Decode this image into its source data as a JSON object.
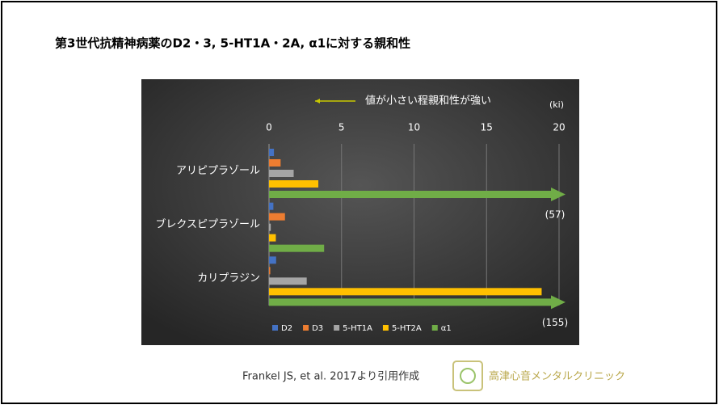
{
  "title": "第3世代抗精神病薬のD2・3, 5-HT1A・2A, α1に対する親和性",
  "chart_data": {
    "type": "hbar",
    "annotation": "値が小さい程親和性が強い",
    "unit_label": "(ki)",
    "categories": [
      "アリピプラゾール",
      "ブレクスピプラゾール",
      "カリプラジン"
    ],
    "series": [
      {
        "name": "D2",
        "color": "#4472c4",
        "values": [
          0.34,
          0.3,
          0.49
        ]
      },
      {
        "name": "D3",
        "color": "#ed7d31",
        "values": [
          0.8,
          1.1,
          0.085
        ]
      },
      {
        "name": "5-HT1A",
        "color": "#a5a5a5",
        "values": [
          1.7,
          0.12,
          2.6
        ]
      },
      {
        "name": "5-HT2A",
        "color": "#ffc000",
        "values": [
          3.4,
          0.47,
          18.8
        ]
      },
      {
        "name": "α1",
        "color": "#70ad47",
        "values": [
          57,
          3.8,
          155
        ],
        "value_labels": [
          "(57)",
          null,
          "(155)"
        ]
      }
    ],
    "xlim": [
      0,
      20
    ],
    "xticks": [
      0,
      5,
      10,
      15,
      20
    ],
    "grid": true,
    "legend": "bottom"
  },
  "footer": {
    "citation": "Frankel JS, et al. 2017より引用作成",
    "clinic": "高津心音メンタルクリニック"
  }
}
